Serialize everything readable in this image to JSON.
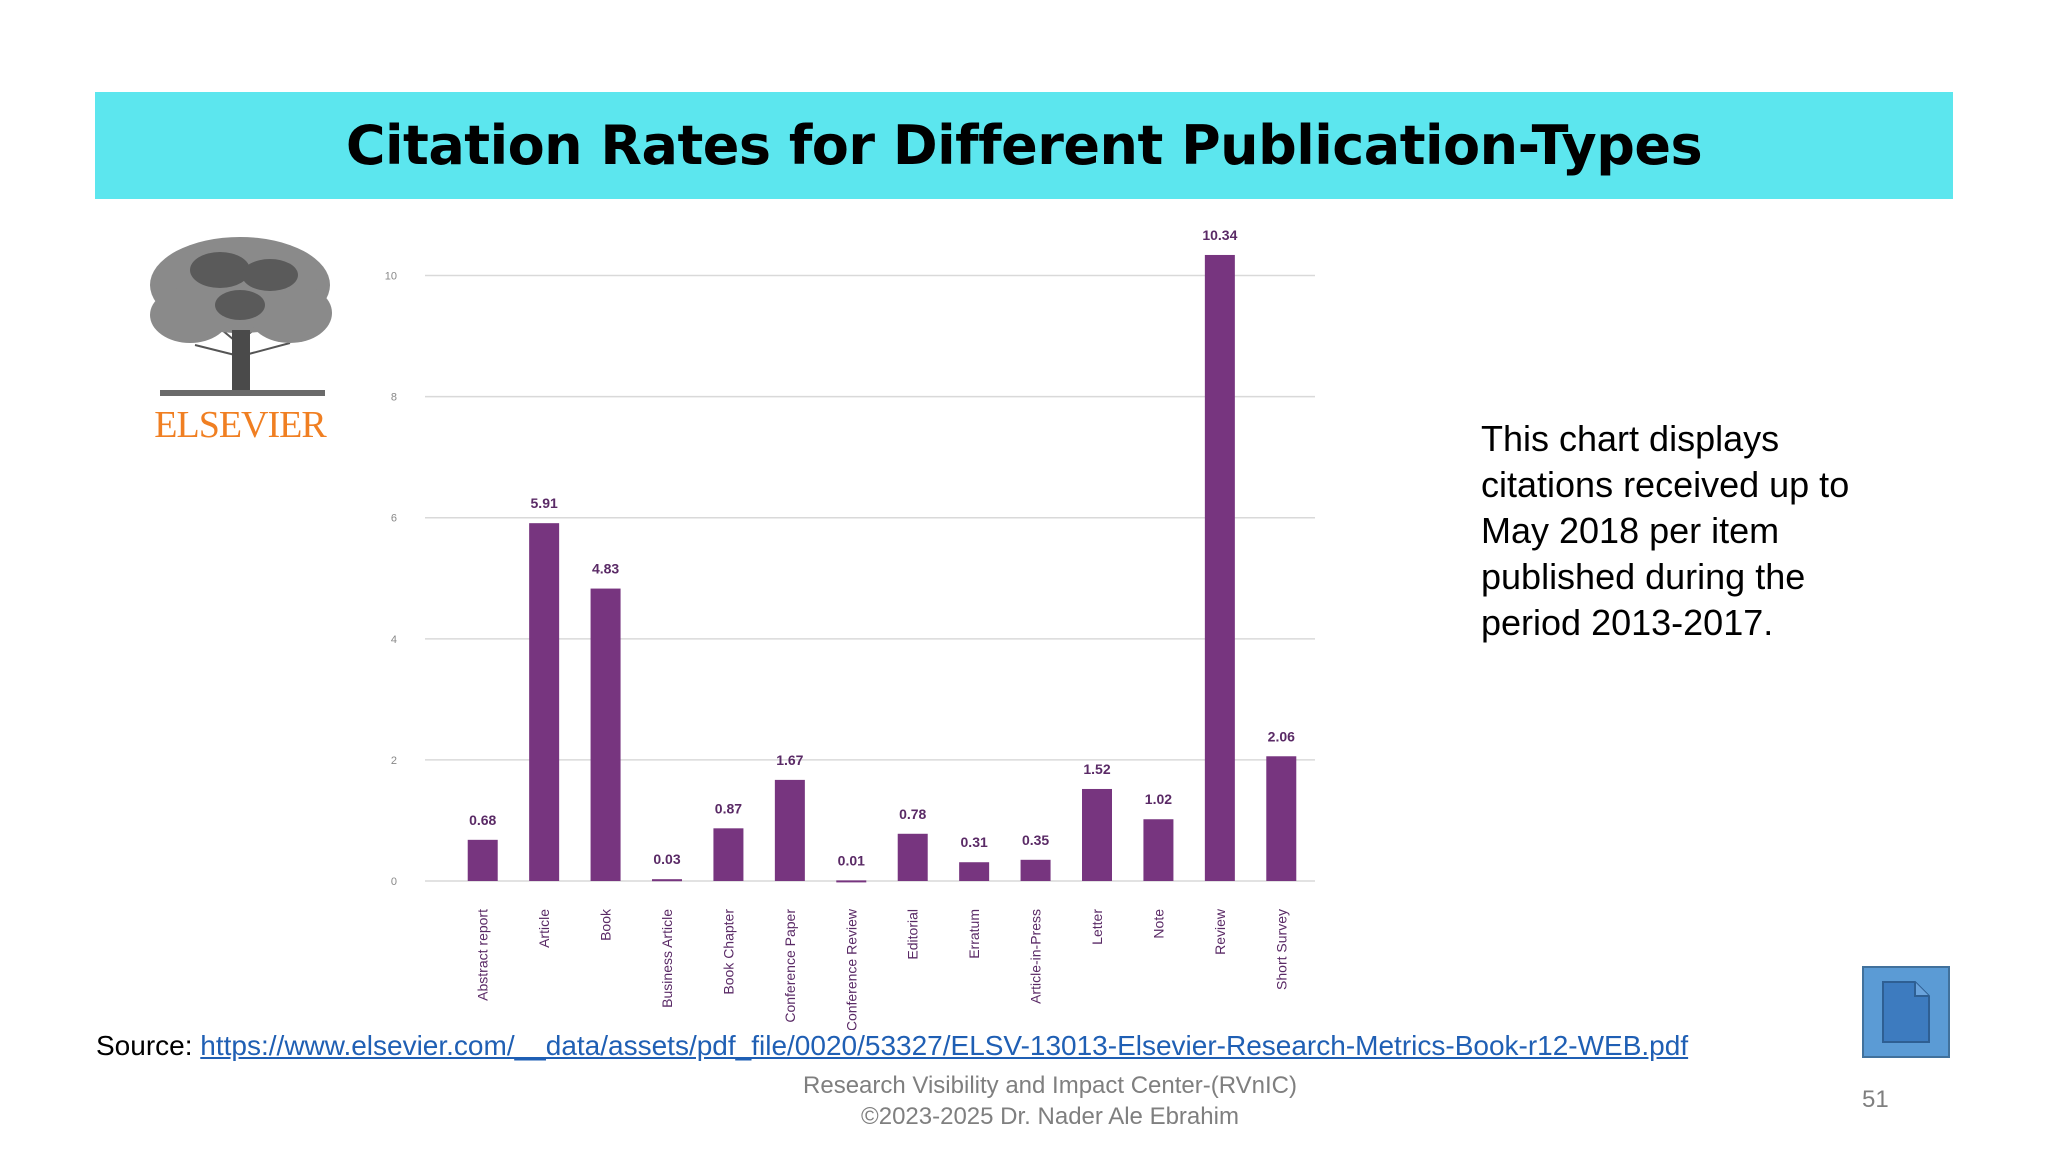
{
  "slide": {
    "title": "Citation Rates for Different Publication-Types",
    "logo_text": "ELSEVIER",
    "note": "This chart displays citations received up to May 2018 per item published during the period 2013-2017.",
    "source_label": "Source: ",
    "source_link": "https://www.elsevier.com/__data/assets/pdf_file/0020/53327/ELSV-13013-Elsevier-Research-Metrics-Book-r12-WEB.pdf",
    "footer_line1": "Research Visibility and Impact Center-(RVnIC)",
    "footer_line2": "©2023-2025 Dr. Nader Ale Ebrahim",
    "page_number": "51",
    "doc_icon": "document-icon",
    "colors": {
      "title_bar": "#5ce6ee",
      "bar": "#77357f",
      "logo_text": "#f07f22",
      "link": "#1f5fb4"
    }
  },
  "chart_data": {
    "type": "bar",
    "categories": [
      "Abstract report",
      "Article",
      "Book",
      "Business Article",
      "Book Chapter",
      "Conference Paper",
      "Conference Review",
      "Editorial",
      "Erratum",
      "Article-in-Press",
      "Letter",
      "Note",
      "Review",
      "Short Survey"
    ],
    "values": [
      0.68,
      5.91,
      4.83,
      0.03,
      0.87,
      1.67,
      0.01,
      0.78,
      0.31,
      0.35,
      1.52,
      1.02,
      10.34,
      2.06
    ],
    "labels": [
      "0.68",
      "5.91",
      "4.83",
      "0.03",
      "0.87",
      "1.67",
      "0.01",
      "0.78",
      "0.31",
      "0.35",
      "1.52",
      "1.02",
      "10.34",
      "2.06"
    ],
    "yticks": [
      "0",
      "2",
      "4",
      "6",
      "8",
      "10"
    ],
    "ylim": [
      0,
      11
    ],
    "grid": true,
    "title": "",
    "xlabel": "",
    "ylabel": ""
  }
}
